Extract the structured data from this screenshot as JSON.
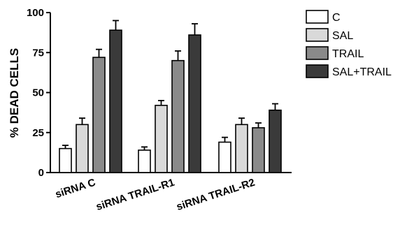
{
  "chart_data": {
    "type": "bar",
    "title": "",
    "xlabel": "",
    "ylabel": "% DEAD CELLS",
    "ylim": [
      0,
      100
    ],
    "yticks": [
      "0",
      "25",
      "50",
      "75",
      "100"
    ],
    "grid": false,
    "legend_position": "top-right",
    "error_bars": true,
    "categories": [
      "siRNA C",
      "siRNA TRAIL-R1",
      "siRNA TRAIL-R2"
    ],
    "series": [
      {
        "name": "C",
        "color": "#ffffff",
        "values": [
          15,
          14,
          19
        ],
        "errors": [
          2,
          2,
          3
        ]
      },
      {
        "name": "SAL",
        "color": "#d9d9d9",
        "values": [
          30,
          42,
          30
        ],
        "errors": [
          4,
          3,
          4
        ]
      },
      {
        "name": "TRAIL",
        "color": "#8a8a8a",
        "values": [
          72,
          70,
          28
        ],
        "errors": [
          5,
          6,
          3
        ]
      },
      {
        "name": "SAL+TRAIL",
        "color": "#3a3a3a",
        "values": [
          89,
          86,
          39
        ],
        "errors": [
          6,
          7,
          4
        ]
      }
    ]
  }
}
